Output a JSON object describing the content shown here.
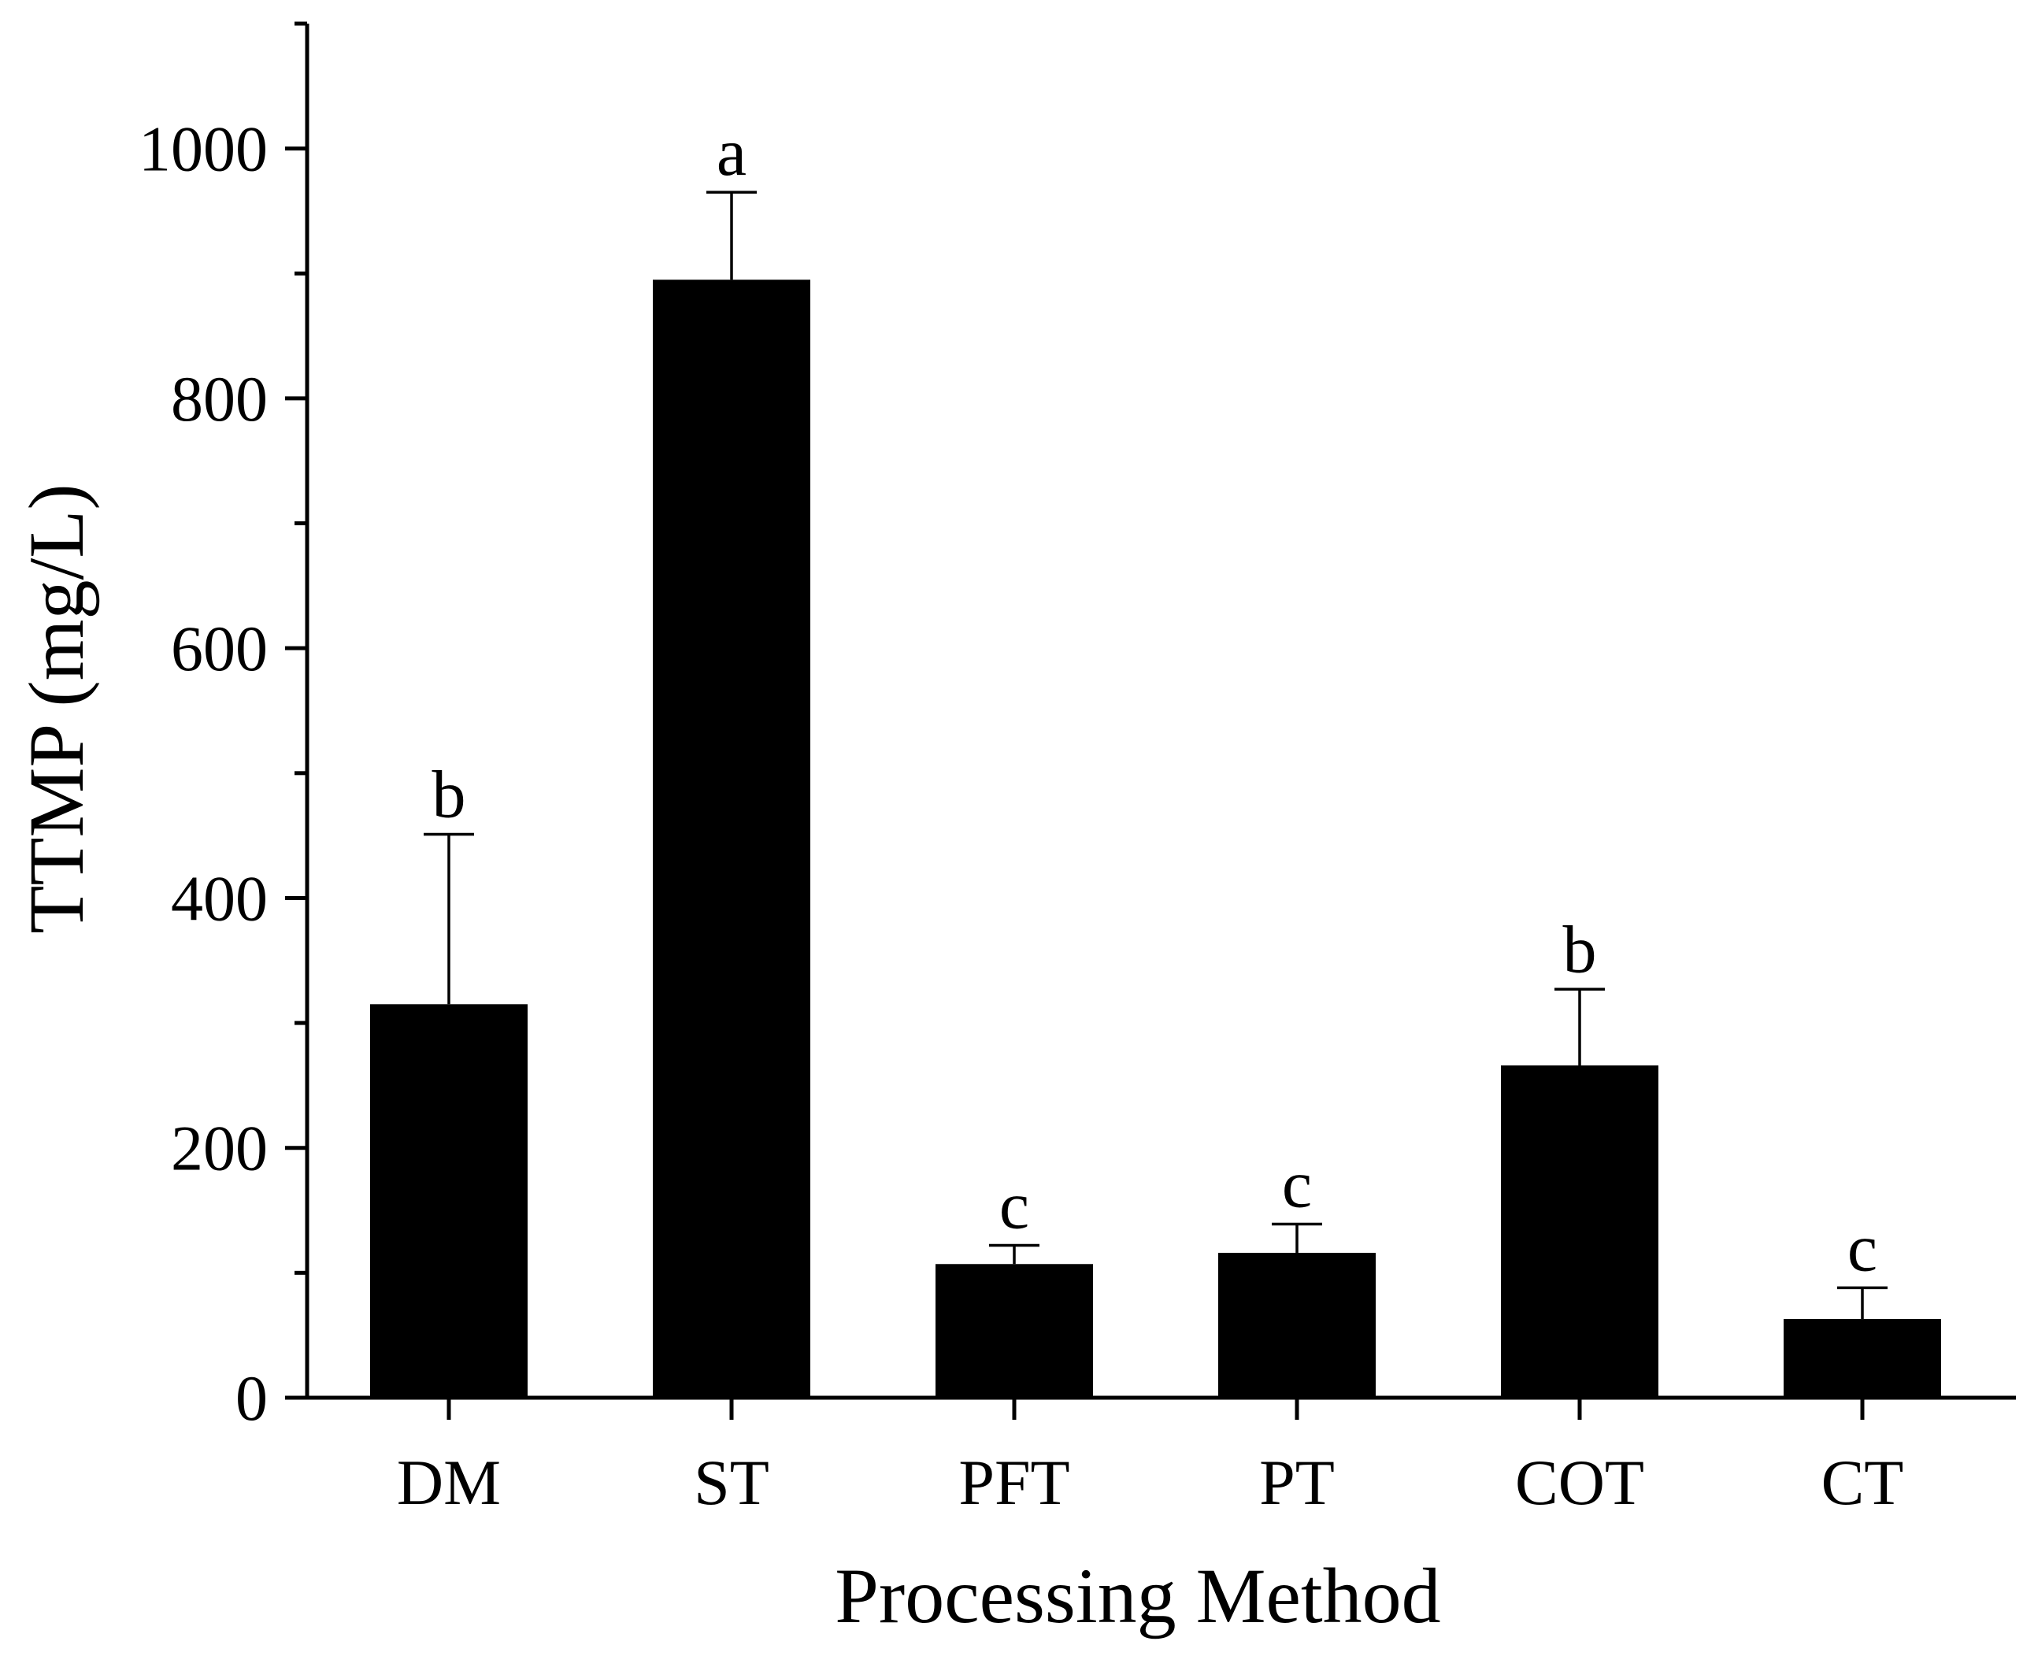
{
  "chart_data": {
    "type": "bar",
    "title": "",
    "xlabel": "Processing Method",
    "ylabel": "TTMP (mg/L)",
    "categories": [
      "DM",
      "ST",
      "PFT",
      "PT",
      "COT",
      "CT"
    ],
    "values": [
      315,
      895,
      107,
      116,
      266,
      63
    ],
    "error_upper": [
      136,
      70,
      15,
      23,
      61,
      25
    ],
    "significance": [
      "b",
      "a",
      "c",
      "c",
      "b",
      "c"
    ],
    "ylim": [
      0,
      1100
    ],
    "yticks": [
      0,
      200,
      400,
      600,
      800,
      1000
    ],
    "yticks_minor": [
      100,
      300,
      500,
      700,
      900,
      1100
    ],
    "ytick_labels": [
      "0",
      "200",
      "400",
      "600",
      "800",
      "1000"
    ],
    "grid": false,
    "bar_color": "#000000"
  }
}
